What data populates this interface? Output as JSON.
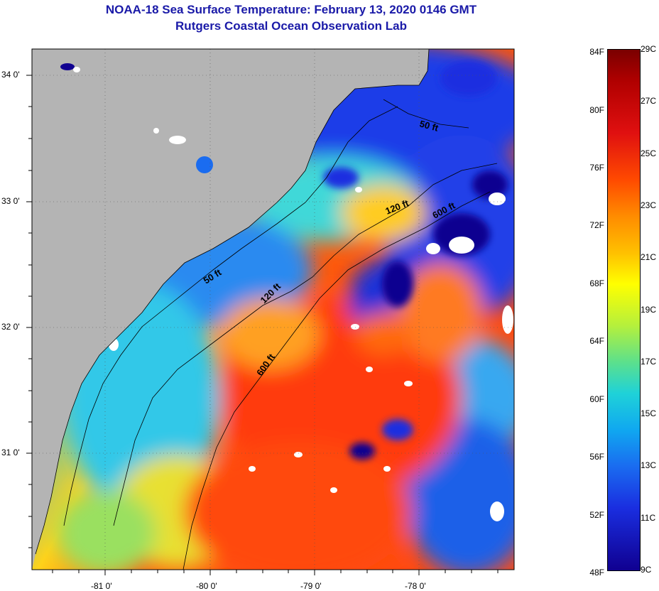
{
  "header": {
    "title": "NOAA-18 Sea Surface Temperature:  February 13, 2020 0146 GMT",
    "subtitle": "Rutgers Coastal Ocean Observation Lab"
  },
  "map": {
    "lat_labels": [
      "34 0'",
      "33 0'",
      "32 0'",
      "31 0'"
    ],
    "lon_labels": [
      "-81 0'",
      "-80 0'",
      "-79 0'",
      "-78 0'"
    ],
    "contour_labels": [
      "50 ft",
      "120 ft",
      "600 ft",
      "50 ft",
      "120 ft",
      "600 ft"
    ],
    "land_color": "#b4b4b4",
    "cloud_color": "#ffffff"
  },
  "colorbar": {
    "fahrenheit": [
      "84F",
      "80F",
      "76F",
      "72F",
      "68F",
      "64F",
      "60F",
      "56F",
      "52F",
      "48F"
    ],
    "celsius": [
      "29C",
      "27C",
      "25C",
      "23C",
      "21C",
      "19C",
      "17C",
      "15C",
      "13C",
      "11C",
      "9C"
    ],
    "range_c": [
      9,
      29
    ],
    "colors": [
      "#100090",
      "#1a2ee0",
      "#1a6cf0",
      "#10a8f0",
      "#1fd2d8",
      "#5ce08c",
      "#b5f03c",
      "#ffff00",
      "#ffc000",
      "#ff8c00",
      "#ff4a00",
      "#e01010",
      "#b00000",
      "#7a0000"
    ]
  }
}
